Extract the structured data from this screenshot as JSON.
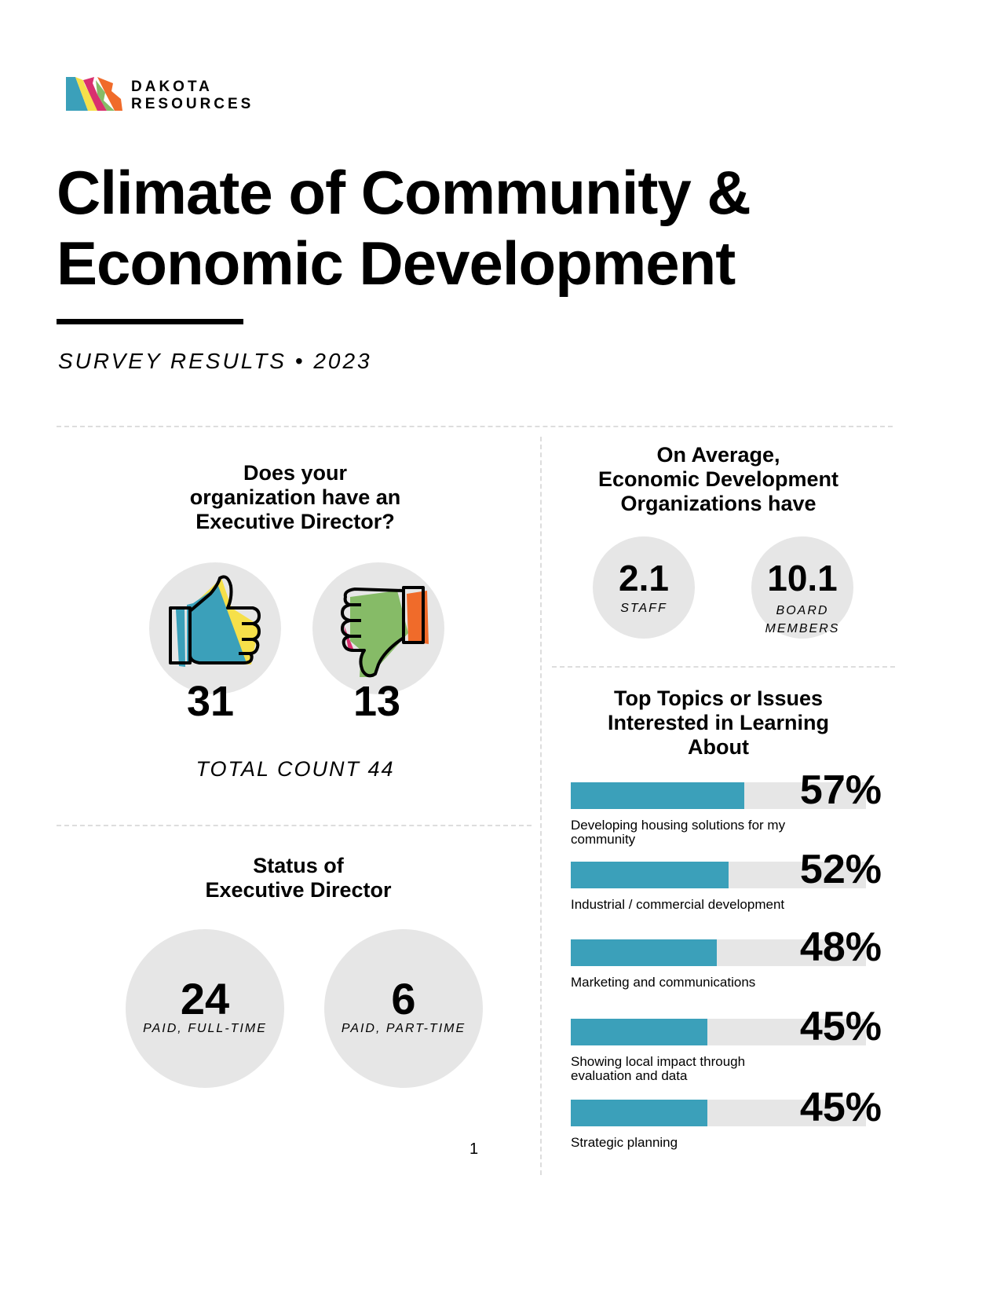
{
  "header": {
    "logo_line1": "DAKOTA",
    "logo_line2": "RESOURCES",
    "title_line1": "Climate of Community &",
    "title_line2": "Economic Development",
    "subtitle": "SURVEY RESULTS • 2023"
  },
  "exec_director": {
    "question_lines": [
      "Does your",
      "organization have an",
      "Executive Director?"
    ],
    "yes_icon": "thumbs-up-icon",
    "no_icon": "thumbs-down-icon",
    "yes_count": "31",
    "no_count": "13",
    "total": "TOTAL COUNT 44"
  },
  "status": {
    "heading_lines": [
      "Status of",
      "Executive Director"
    ],
    "items": [
      {
        "value": "24",
        "label": "PAID, FULL-TIME"
      },
      {
        "value": "6",
        "label": "PAID, PART-TIME"
      }
    ]
  },
  "averages": {
    "heading_lines": [
      "On Average,",
      "Economic Development",
      "Organizations have"
    ],
    "items": [
      {
        "value": "2.1",
        "label": "STAFF"
      },
      {
        "value": "10.1",
        "label": "BOARD MEMBERS"
      }
    ]
  },
  "topics": {
    "heading_lines": [
      "Top Topics or Issues",
      "Interested in Learning",
      "About"
    ],
    "items": [
      {
        "percent": 57,
        "pct_label": "57%",
        "label": "Developing housing solutions for my community"
      },
      {
        "percent": 52,
        "pct_label": "52%",
        "label": "Industrial / commercial development"
      },
      {
        "percent": 48,
        "pct_label": "48%",
        "label": "Marketing and communications"
      },
      {
        "percent": 45,
        "pct_label": "45%",
        "label": "Showing local impact through evaluation and data"
      },
      {
        "percent": 45,
        "pct_label": "45%",
        "label": "Strategic planning"
      }
    ]
  },
  "colors": {
    "bar_fill": "#3ba0ba",
    "track": "#e6e6e6",
    "blue": "#3ba0ba",
    "yellow": "#f6e04a",
    "pink": "#d9306f",
    "green": "#86bb67",
    "orange": "#f06b2a"
  },
  "page_number": "1"
}
